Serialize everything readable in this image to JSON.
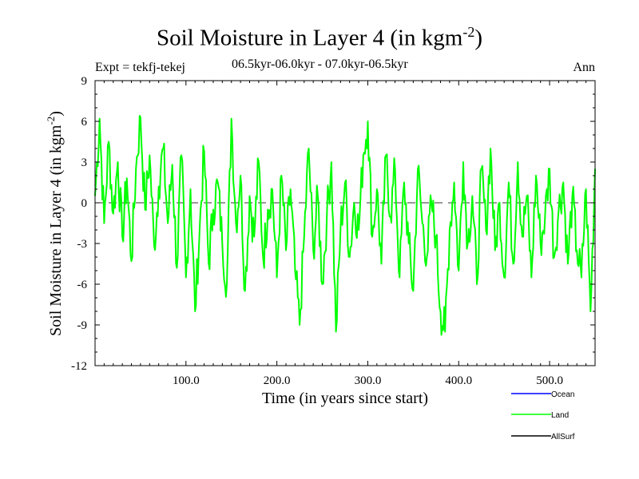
{
  "chart_data": {
    "type": "line",
    "title": "Soil Moisture in Layer 4 (in kgm",
    "title_exp": "-2",
    "title_close": ")",
    "subtitle": "06.5kyr-06.0kyr - 07.0kyr-06.5kyr",
    "expt_label": "Expt = tekfj-tekej",
    "season_label": "Ann",
    "xlabel": "Time (in years since start)",
    "ylabel": "Soil Moisture in Layer 4 (in kgm",
    "ylabel_exp": "-2",
    "ylabel_close": ")",
    "xlim": [
      0,
      550
    ],
    "ylim": [
      -12,
      9
    ],
    "xticks": [
      100,
      200,
      300,
      400,
      500
    ],
    "xtick_labels": [
      "100.0",
      "200.0",
      "300.0",
      "400.0",
      "500.0"
    ],
    "yticks": [
      -12,
      -9,
      -6,
      -3,
      0,
      3,
      6,
      9
    ],
    "ytick_labels": [
      "-12",
      "-9",
      "-6",
      "-3",
      "0",
      "3",
      "6",
      "9"
    ],
    "zero_line": true,
    "series": [
      {
        "name": "Ocean",
        "color": "#0000ff",
        "values": []
      },
      {
        "name": "Land",
        "color": "#00ff00",
        "x": [
          0,
          5,
          10,
          15,
          20,
          25,
          30,
          35,
          40,
          45,
          50,
          55,
          60,
          65,
          70,
          75,
          80,
          85,
          90,
          95,
          100,
          105,
          110,
          115,
          120,
          125,
          130,
          135,
          140,
          145,
          150,
          155,
          160,
          165,
          170,
          175,
          180,
          185,
          190,
          195,
          200,
          205,
          210,
          215,
          220,
          225,
          230,
          235,
          240,
          245,
          250,
          255,
          260,
          265,
          270,
          275,
          280,
          285,
          290,
          295,
          300,
          305,
          310,
          315,
          320,
          325,
          330,
          335,
          340,
          345,
          350,
          355,
          360,
          365,
          370,
          375,
          380,
          385,
          390,
          395,
          400,
          405,
          410,
          415,
          420,
          425,
          430,
          435,
          440,
          445,
          450,
          455,
          460,
          465,
          470,
          475,
          480,
          485,
          490,
          495,
          500,
          505,
          510,
          515,
          520,
          525,
          530,
          535,
          540,
          545,
          550
        ],
        "values": [
          0.5,
          6.2,
          -1.5,
          4.5,
          -0.8,
          3.0,
          -2.5,
          1.8,
          -4.3,
          2.5,
          6.3,
          -0.5,
          3.5,
          -3.2,
          1.2,
          4.0,
          -1.5,
          2.8,
          -4.8,
          3.5,
          -5.5,
          1.0,
          -8.0,
          -2.0,
          3.8,
          -4.5,
          -0.5,
          1.5,
          -3.0,
          -6.0,
          6.2,
          -1.5,
          2.0,
          -6.5,
          0.5,
          -2.5,
          3.0,
          -4.2,
          -0.5,
          1.0,
          -5.5,
          2.0,
          -3.5,
          1.0,
          -5.0,
          -9.0,
          -2.5,
          4.0,
          -3.5,
          0.5,
          -6.0,
          -1.0,
          3.0,
          -9.5,
          -2.0,
          1.5,
          -4.0,
          0.0,
          -2.0,
          3.5,
          6.0,
          -2.5,
          1.0,
          -4.5,
          3.5,
          -1.0,
          2.5,
          -5.5,
          1.5,
          -3.0,
          -6.5,
          2.5,
          -1.5,
          -4.0,
          0.0,
          -2.5,
          -8.0,
          -9.5,
          -2.0,
          1.5,
          -5.0,
          3.0,
          -3.0,
          0.5,
          -6.0,
          2.5,
          -2.0,
          4.0,
          -3.5,
          0.0,
          -5.5,
          1.5,
          -4.5,
          3.0,
          -2.5,
          0.5,
          -5.5,
          2.0,
          -3.0,
          -1.0,
          2.5,
          -4.0,
          -0.5,
          1.5,
          -4.5,
          0.5,
          -3.5,
          -5.5,
          1.0,
          -8.0,
          2.5
        ]
      },
      {
        "name": "AllSurf",
        "color": "#000000",
        "values": []
      }
    ],
    "legend": [
      "Ocean",
      "Land",
      "AllSurf"
    ]
  }
}
